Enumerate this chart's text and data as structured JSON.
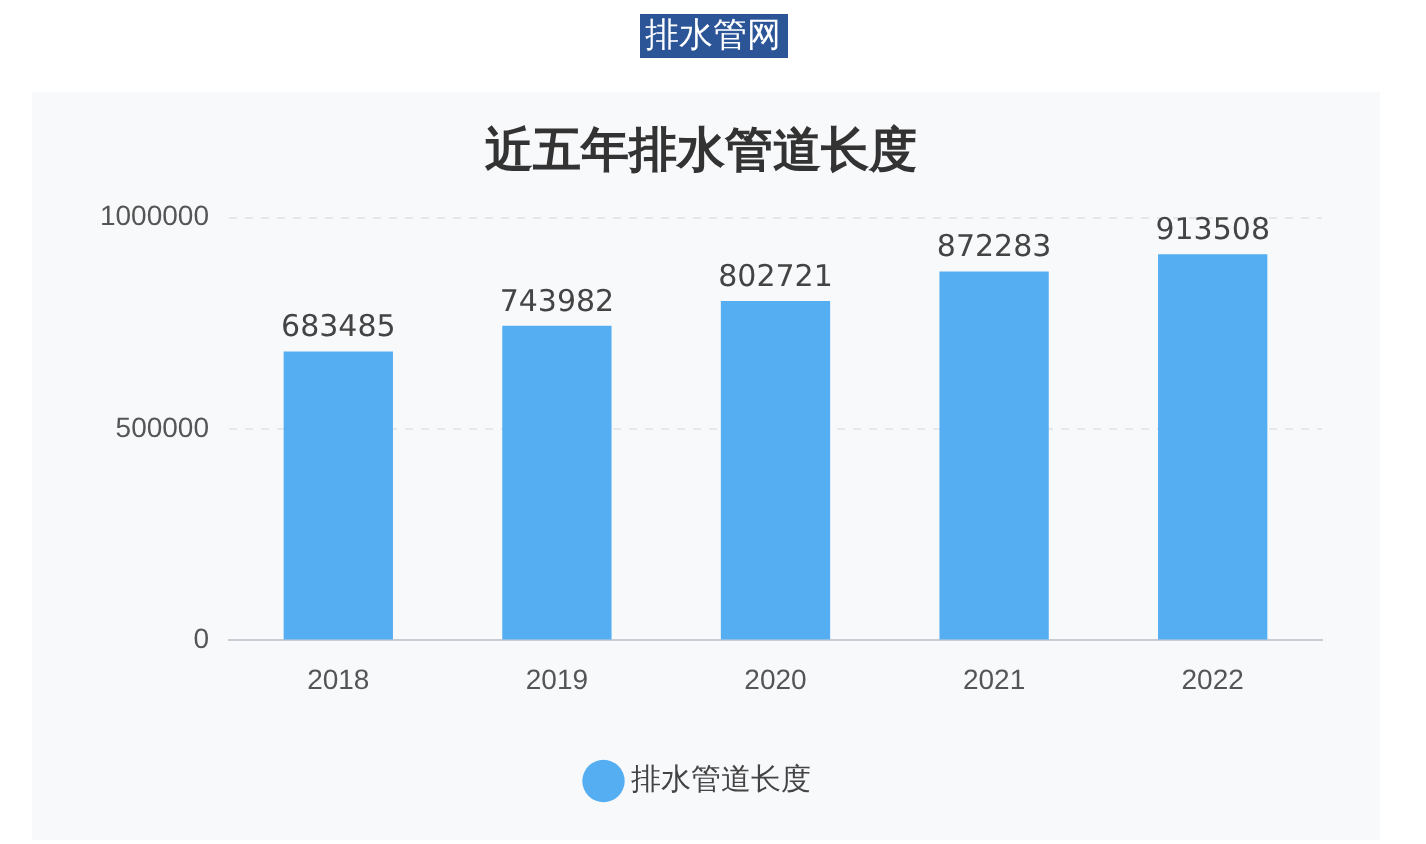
{
  "chart_data": {
    "type": "bar",
    "title": "近五年排水管道长度",
    "annotations": [
      "排水管网"
    ],
    "categories": [
      "2018",
      "2019",
      "2020",
      "2021",
      "2022"
    ],
    "series": [
      {
        "name": "排水管道长度",
        "color": "#55aef2",
        "values": [
          683485,
          743982,
          802721,
          872283,
          913508
        ]
      }
    ],
    "ylim": [
      0,
      1000000
    ],
    "yticks": [
      0,
      500000,
      1000000
    ],
    "grid": "y",
    "legend": "bottom",
    "data_labels": true
  }
}
